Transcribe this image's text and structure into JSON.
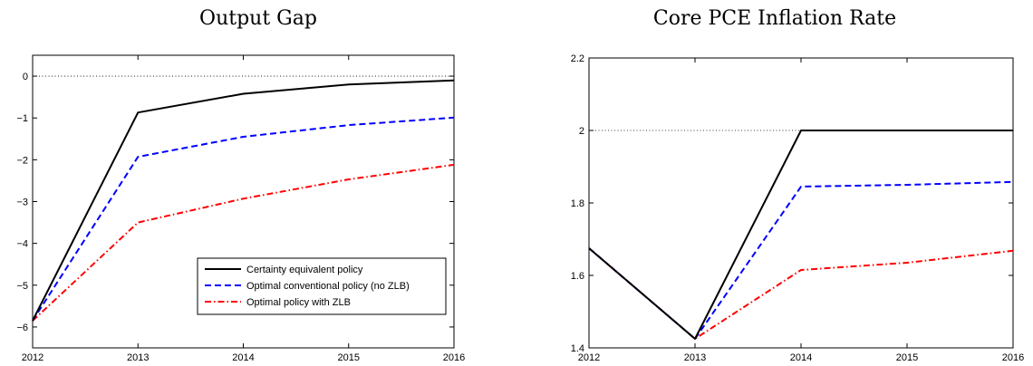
{
  "chart_data": [
    {
      "type": "line",
      "title": "Output Gap",
      "x": [
        2012,
        2013,
        2014,
        2015,
        2016
      ],
      "xlim": [
        2012,
        2016
      ],
      "ylim": [
        -6.5,
        0.5
      ],
      "xticks": [
        "2012",
        "2013",
        "2014",
        "2015",
        "2016"
      ],
      "yticks": [
        0,
        -1,
        -2,
        -3,
        -4,
        -5,
        -6
      ],
      "ytick_labels": [
        "0",
        "−1",
        "−2",
        "−3",
        "−4",
        "−5",
        "−6"
      ],
      "reference_line": 0,
      "series": [
        {
          "name": "Certainty equivalent policy",
          "values": [
            -5.85,
            -0.87,
            -0.42,
            -0.2,
            -0.1
          ],
          "color": "#000000",
          "style": "solid"
        },
        {
          "name": "Optimal conventional policy (no ZLB)",
          "values": [
            -5.85,
            -1.93,
            -1.45,
            -1.17,
            -0.99
          ],
          "color": "#0000ff",
          "style": "dashed"
        },
        {
          "name": "Optimal policy with ZLB",
          "values": [
            -5.85,
            -3.5,
            -2.93,
            -2.47,
            -2.12
          ],
          "color": "#ff0000",
          "style": "dashdot"
        }
      ],
      "legend": "lower-right"
    },
    {
      "type": "line",
      "title": "Core PCE Inflation Rate",
      "x": [
        2012,
        2013,
        2014,
        2015,
        2016
      ],
      "xlim": [
        2012,
        2016
      ],
      "ylim": [
        1.4,
        2.2
      ],
      "xticks": [
        "2012",
        "2013",
        "2014",
        "2015",
        "2016"
      ],
      "yticks": [
        1.4,
        1.6,
        1.8,
        2,
        2.2
      ],
      "ytick_labels": [
        "1.4",
        "1.6",
        "1.8",
        "2",
        "2.2"
      ],
      "reference_line": 2,
      "series": [
        {
          "name": "Certainty equivalent policy",
          "values": [
            1.675,
            1.425,
            2.0,
            2.0,
            2.0
          ],
          "color": "#000000",
          "style": "solid"
        },
        {
          "name": "Optimal conventional policy (no ZLB)",
          "values": [
            1.675,
            1.425,
            1.845,
            1.85,
            1.858
          ],
          "color": "#0000ff",
          "style": "dashed"
        },
        {
          "name": "Optimal policy with ZLB",
          "values": [
            1.675,
            1.425,
            1.615,
            1.635,
            1.668
          ],
          "color": "#ff0000",
          "style": "dashdot"
        }
      ]
    }
  ]
}
